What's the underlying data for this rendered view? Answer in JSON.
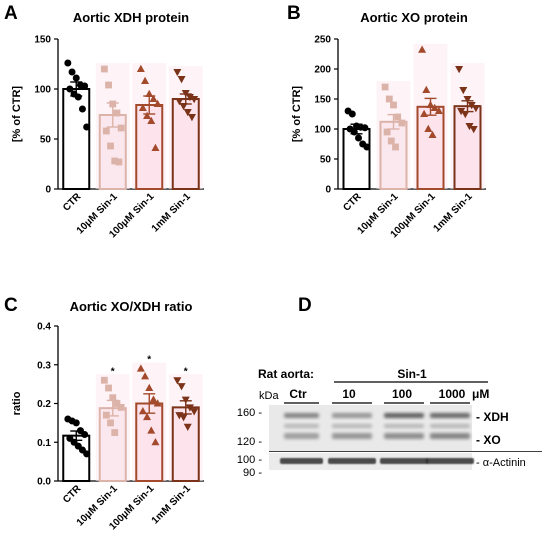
{
  "colors": {
    "ctr": "#000000",
    "sin10": "#dcb3a8",
    "sin100": "#a34a2c",
    "sin1000": "#7a3318",
    "sin10_fill": "#fbe7ee",
    "sin100_fill": "#fce3ec",
    "sin1000_fill": "#fce3ec"
  },
  "chart_data": [
    {
      "panel": "A",
      "type": "bar",
      "title": "Aortic XDH protein",
      "ylabel": "[% of CTR]",
      "ylim": [
        0,
        150
      ],
      "yticks": [
        "0",
        "50",
        "100",
        "150"
      ],
      "categories": [
        "CTR",
        "10μM Sin-1",
        "100μM Sin-1",
        "1mM Sin-1"
      ],
      "values": [
        100,
        74,
        84,
        90
      ],
      "errors": [
        7,
        12,
        9,
        5
      ],
      "markers": [
        "circle",
        "square",
        "triangle-up",
        "triangle-down"
      ],
      "significance": [
        "",
        "",
        "",
        ""
      ],
      "points": [
        [
          126,
          117,
          111,
          104,
          103,
          100,
          95,
          92,
          80,
          62
        ],
        [
          120,
          104,
          85,
          76,
          61,
          58,
          43,
          28,
          27
        ],
        [
          120,
          108,
          95,
          90,
          85,
          81,
          73,
          68,
          41
        ],
        [
          117,
          110,
          96,
          92,
          90,
          88,
          83,
          77,
          72
        ]
      ]
    },
    {
      "panel": "B",
      "type": "bar",
      "title": "Aortic XO protein",
      "ylabel": "[% of CTR]",
      "ylim": [
        0,
        250
      ],
      "yticks": [
        "0",
        "50",
        "100",
        "150",
        "200",
        "250"
      ],
      "categories": [
        "CTR",
        "10μM Sin-1",
        "100μM Sin-1",
        "1mM Sin-1"
      ],
      "values": [
        100,
        112,
        137,
        138
      ],
      "errors": [
        8,
        12,
        14,
        9
      ],
      "markers": [
        "circle",
        "square",
        "triangle-up",
        "triangle-down"
      ],
      "significance": [
        "",
        "",
        "",
        ""
      ],
      "points": [
        [
          130,
          125,
          105,
          103,
          102,
          100,
          95,
          85,
          75,
          70
        ],
        [
          170,
          150,
          140,
          120,
          110,
          95,
          80,
          70
        ],
        [
          232,
          165,
          140,
          135,
          130,
          125,
          100,
          90
        ],
        [
          200,
          165,
          150,
          140,
          135,
          130,
          125,
          105,
          100
        ]
      ]
    },
    {
      "panel": "C",
      "type": "bar",
      "title": "Aortic XO/XDH ratio",
      "ylabel": "ratio",
      "ylim": [
        0,
        0.4
      ],
      "yticks": [
        "0.0",
        "0.1",
        "0.2",
        "0.3",
        "0.4"
      ],
      "categories": [
        "CTR",
        "10μM Sin-1",
        "100μM Sin-1",
        "1mM Sin-1"
      ],
      "values": [
        0.117,
        0.188,
        0.2,
        0.19
      ],
      "errors": [
        0.012,
        0.02,
        0.025,
        0.017
      ],
      "markers": [
        "circle",
        "square",
        "triangle-up",
        "triangle-down"
      ],
      "significance": [
        "",
        "*",
        "*",
        "*"
      ],
      "points": [
        [
          0.16,
          0.155,
          0.15,
          0.13,
          0.12,
          0.11,
          0.1,
          0.09,
          0.08,
          0.07
        ],
        [
          0.26,
          0.24,
          0.215,
          0.2,
          0.19,
          0.17,
          0.15,
          0.125
        ],
        [
          0.29,
          0.27,
          0.24,
          0.21,
          0.2,
          0.18,
          0.165,
          0.13,
          0.1
        ],
        [
          0.26,
          0.245,
          0.21,
          0.19,
          0.18,
          0.17,
          0.165,
          0.14
        ]
      ]
    }
  ],
  "panels": {
    "a": {
      "letter": "A"
    },
    "b": {
      "letter": "B"
    },
    "c": {
      "letter": "C"
    },
    "d": {
      "letter": "D"
    }
  },
  "blot": {
    "species": "Rat aorta:",
    "treatment": "Sin-1",
    "kda": "kDa",
    "lanes": [
      "Ctr",
      "10",
      "100",
      "1000"
    ],
    "unit": "μM",
    "mw_markers": [
      "160 -",
      "120 -",
      "100 -",
      "90 -"
    ],
    "band_labels": [
      "- XDH",
      "- XO",
      "- α-Actinin"
    ]
  }
}
